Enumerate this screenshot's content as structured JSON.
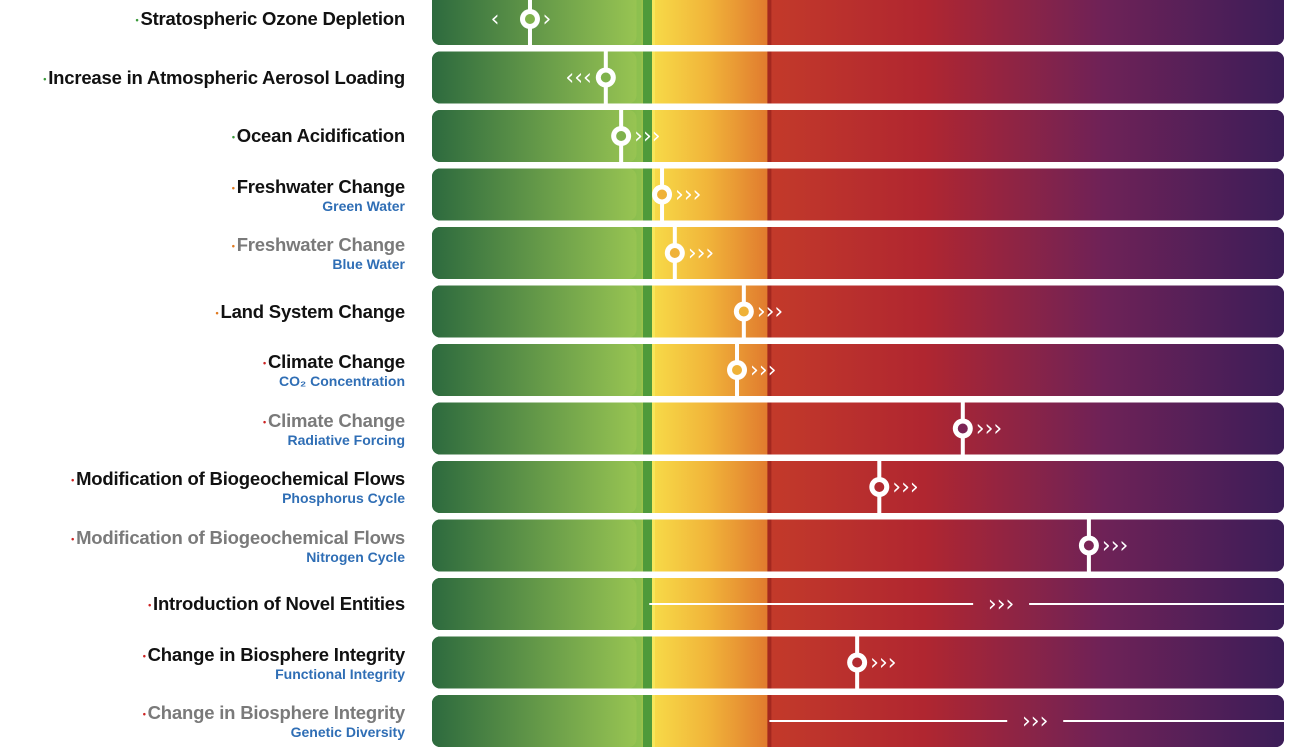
{
  "chart_data": {
    "type": "bar",
    "colors": {
      "safe": "#2e6b3d",
      "boundary": "#8ec14f",
      "uncertainty": "#f5cf3c",
      "high_risk": "#b52a2a",
      "extreme": "#3a1f5c",
      "marker": "#ffffff",
      "label_dark": "#111111",
      "label_grey": "#7a7a7a",
      "subtitle": "#2f6eb5",
      "dot_green": "#3a9a3a",
      "dot_orange": "#e07a20",
      "dot_red": "#cc2222"
    },
    "rows": [
      {
        "title": "Stratospheric Ozone Depletion",
        "subtitle": "",
        "tone": "dark",
        "dot": "green",
        "marker": 0.115,
        "trend": "both",
        "trend_glyph": "‹ ›"
      },
      {
        "title": "Increase in Atmospheric Aerosol Loading",
        "subtitle": "",
        "tone": "dark",
        "dot": "green",
        "marker": 0.204,
        "trend": "left",
        "trend_glyph": "‹‹‹"
      },
      {
        "title": "Ocean Acidification",
        "subtitle": "",
        "tone": "dark",
        "dot": "green",
        "marker": 0.222,
        "trend": "right",
        "trend_glyph": "›››"
      },
      {
        "title": "Freshwater Change",
        "subtitle": "Green Water",
        "tone": "dark",
        "dot": "orange",
        "marker": 0.27,
        "trend": "right",
        "trend_glyph": "›››"
      },
      {
        "title": "Freshwater Change",
        "subtitle": "Blue Water",
        "tone": "grey",
        "dot": "orange",
        "marker": 0.285,
        "trend": "right",
        "trend_glyph": "›››"
      },
      {
        "title": "Land System Change",
        "subtitle": "",
        "tone": "dark",
        "dot": "orange",
        "marker": 0.366,
        "trend": "right",
        "trend_glyph": "›››"
      },
      {
        "title": "Climate Change",
        "subtitle": "CO₂ Concentration",
        "tone": "dark",
        "dot": "red",
        "marker": 0.358,
        "trend": "right",
        "trend_glyph": "›››"
      },
      {
        "title": "Climate Change",
        "subtitle": "Radiative Forcing",
        "tone": "grey",
        "dot": "red",
        "marker": 0.623,
        "trend": "right",
        "trend_glyph": "›››"
      },
      {
        "title": "Modification of Biogeochemical Flows",
        "subtitle": "Phosphorus Cycle",
        "tone": "dark",
        "dot": "red",
        "marker": 0.525,
        "trend": "right",
        "trend_glyph": "›››"
      },
      {
        "title": "Modification of Biogeochemical Flows",
        "subtitle": "Nitrogen Cycle",
        "tone": "grey",
        "dot": "red",
        "marker": 0.771,
        "trend": "right",
        "trend_glyph": "›››"
      },
      {
        "title": "Introduction of Novel Entities",
        "subtitle": "",
        "tone": "dark",
        "dot": "red",
        "marker": null,
        "trend": "line",
        "trend_glyph": "›››",
        "line_start": 0.255,
        "arrow_pos": 0.668
      },
      {
        "title": "Change in Biosphere Integrity",
        "subtitle": "Functional Integrity",
        "tone": "dark",
        "dot": "red",
        "marker": 0.499,
        "trend": "right",
        "trend_glyph": "›››"
      },
      {
        "title": "Change in Biosphere Integrity",
        "subtitle": "Genetic Diversity",
        "tone": "grey",
        "dot": "red",
        "marker": null,
        "trend": "line",
        "trend_glyph": "›››",
        "line_start": 0.396,
        "arrow_pos": 0.708
      }
    ]
  }
}
